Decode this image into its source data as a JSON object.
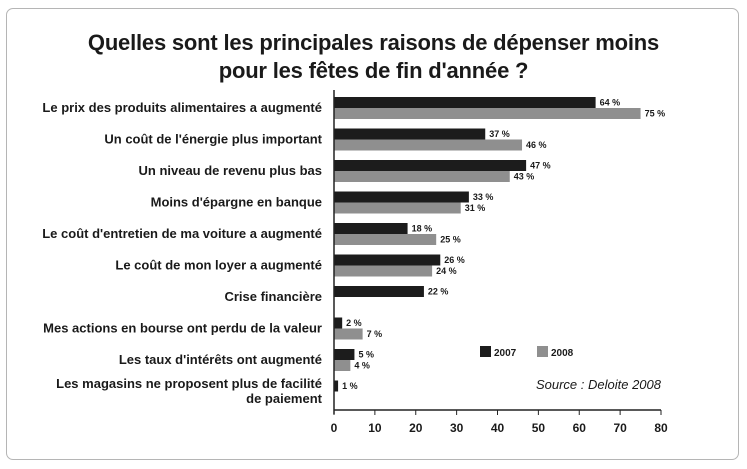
{
  "chart_data": {
    "type": "bar",
    "orientation": "horizontal",
    "title_line1": "Quelles sont les principales raisons de dépenser moins",
    "title_line2": "pour les fêtes de fin d'année ?",
    "categories": [
      [
        "Le prix des produits alimentaires a augmenté"
      ],
      [
        "Un coût de l'énergie plus important"
      ],
      [
        "Un niveau de revenu plus bas"
      ],
      [
        "Moins d'épargne en banque"
      ],
      [
        "Le coût d'entretien de ma voiture a augmenté"
      ],
      [
        "Le coût de mon loyer a augmenté"
      ],
      [
        "Crise financière"
      ],
      [
        "Mes actions en bourse ont perdu de la valeur"
      ],
      [
        "Les taux d'intérêts ont augmenté"
      ],
      [
        "Les magasins ne proposent plus de facilité",
        "de paiement"
      ]
    ],
    "series": [
      {
        "name": "2007",
        "color": "#1c1c1c",
        "values": [
          64,
          37,
          47,
          33,
          18,
          26,
          22,
          2,
          5,
          1
        ]
      },
      {
        "name": "2008",
        "color": "#8f8f8f",
        "values": [
          75,
          46,
          43,
          31,
          25,
          24,
          null,
          7,
          4,
          null
        ]
      }
    ],
    "value_suffix": " %",
    "xlim": [
      0,
      80
    ],
    "xticks": [
      0,
      10,
      20,
      30,
      40,
      50,
      60,
      70,
      80
    ],
    "grid": false,
    "legend_position": "lower-right",
    "source": "Source : Deloite 2008"
  }
}
